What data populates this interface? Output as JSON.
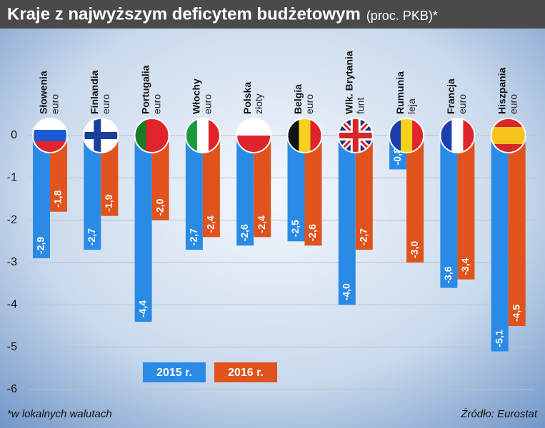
{
  "chart_data": {
    "type": "bar",
    "title": "Kraje z najwyższym deficytem budżetowym",
    "subtitle": "(proc. PKB)*",
    "categories": [
      "Słowenia",
      "Finlandia",
      "Portugalia",
      "Włochy",
      "Polska",
      "Belgia",
      "Wlk. Brytania",
      "Rumunia",
      "Francja",
      "Hiszpania"
    ],
    "currencies": [
      "euro",
      "euro",
      "euro",
      "euro",
      "złoty",
      "euro",
      "funt",
      "leja",
      "euro",
      "euro"
    ],
    "series": [
      {
        "name": "2015 r.",
        "color": "#2a8be6",
        "values": [
          -2.9,
          -2.7,
          -4.4,
          -2.7,
          -2.6,
          -2.5,
          -4.0,
          -0.8,
          -3.6,
          -5.1
        ],
        "value_labels": [
          "-2,9",
          "-2,7",
          "-4,4",
          "-2,7",
          "-2,6",
          "-2,5",
          "-4,0",
          "-0,8",
          "-3,6",
          "-5,1"
        ]
      },
      {
        "name": "2016 r.",
        "color": "#e0531c",
        "values": [
          -1.8,
          -1.9,
          -2.0,
          -2.4,
          -2.4,
          -2.6,
          -2.7,
          -3.0,
          -3.4,
          -4.5
        ],
        "value_labels": [
          "-1,8",
          "-1,9",
          "-2,0",
          "-2,4",
          "-2,4",
          "-2,6",
          "-2,7",
          "-3,0",
          "-3,4",
          "-4,5"
        ]
      }
    ],
    "ylim": [
      -6,
      0
    ],
    "yticks": [
      0,
      -1,
      -2,
      -3,
      -4,
      -5,
      -6
    ],
    "grid": true,
    "footnote": "*w lokalnych walutach",
    "source": "Źródło: Eurostat"
  }
}
